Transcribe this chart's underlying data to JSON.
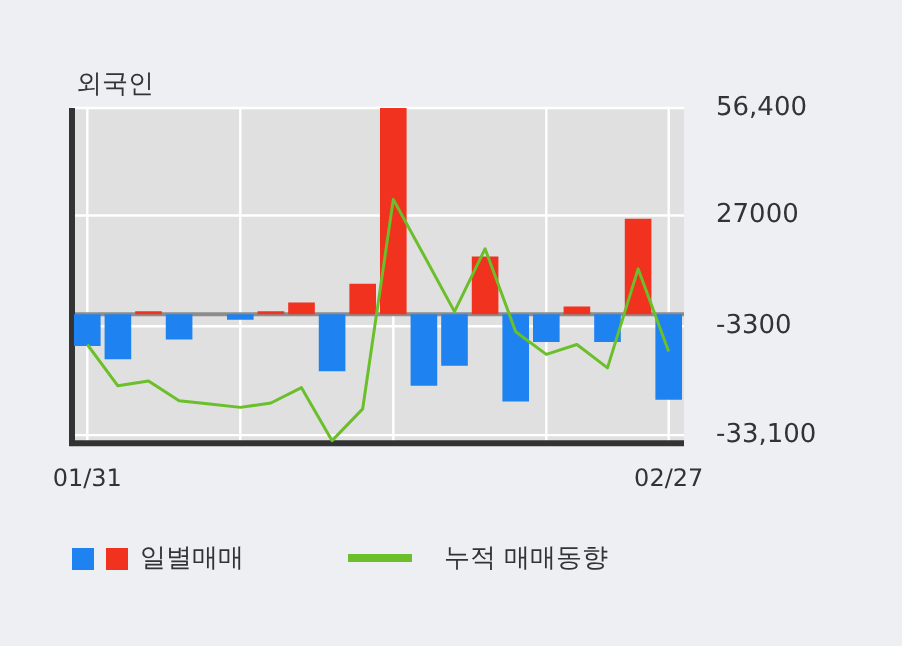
{
  "chart_data": {
    "type": "bar",
    "title": "외국인",
    "categories": [
      "01/31",
      null,
      null,
      null,
      null,
      null,
      null,
      null,
      null,
      null,
      null,
      null,
      null,
      null,
      null,
      null,
      null,
      null,
      null,
      "02/27"
    ],
    "series": [
      {
        "name": "일별매매",
        "colors": [
          "#1e82f0",
          "#1e82f0",
          "#f0321e",
          "#1e82f0",
          "#1e82f0",
          "#1e82f0",
          "#f0321e",
          "#f0321e",
          "#1e82f0",
          "#f0321e",
          "#f0321e",
          "#1e82f0",
          "#1e82f0",
          "#f0321e",
          "#1e82f0",
          "#1e82f0",
          "#f0321e",
          "#1e82f0",
          "#f0321e",
          "#1e82f0"
        ],
        "values": [
          -8700,
          -12300,
          800,
          -6900,
          0,
          -1500,
          800,
          3200,
          -15600,
          8300,
          56400,
          -19600,
          -14100,
          15800,
          -23900,
          -7600,
          2100,
          -7600,
          26100,
          -23400
        ]
      },
      {
        "name": "누적 매매동향",
        "type": "line",
        "color": "#6abf2a",
        "values": [
          -8300,
          -19600,
          -18300,
          -23700,
          -24600,
          -25500,
          -24300,
          -20100,
          -34600,
          -25900,
          31400,
          16100,
          700,
          17900,
          -4800,
          -11000,
          -8300,
          -14700,
          12400,
          -10200
        ]
      }
    ],
    "ylim": [
      -35300,
      56400
    ],
    "yticks": [
      {
        "value": 56400,
        "label": "56,400"
      },
      {
        "value": 27000,
        "label": "27000"
      },
      {
        "value": -3300,
        "label": "-3300"
      },
      {
        "value": -33100,
        "label": "-33,100"
      }
    ],
    "ref_lines": [
      {
        "axis": "y",
        "value": 0,
        "color": "#8c8c8c"
      }
    ],
    "grid": true,
    "legend": "bottom",
    "marker": "none",
    "line_style": "solid"
  }
}
